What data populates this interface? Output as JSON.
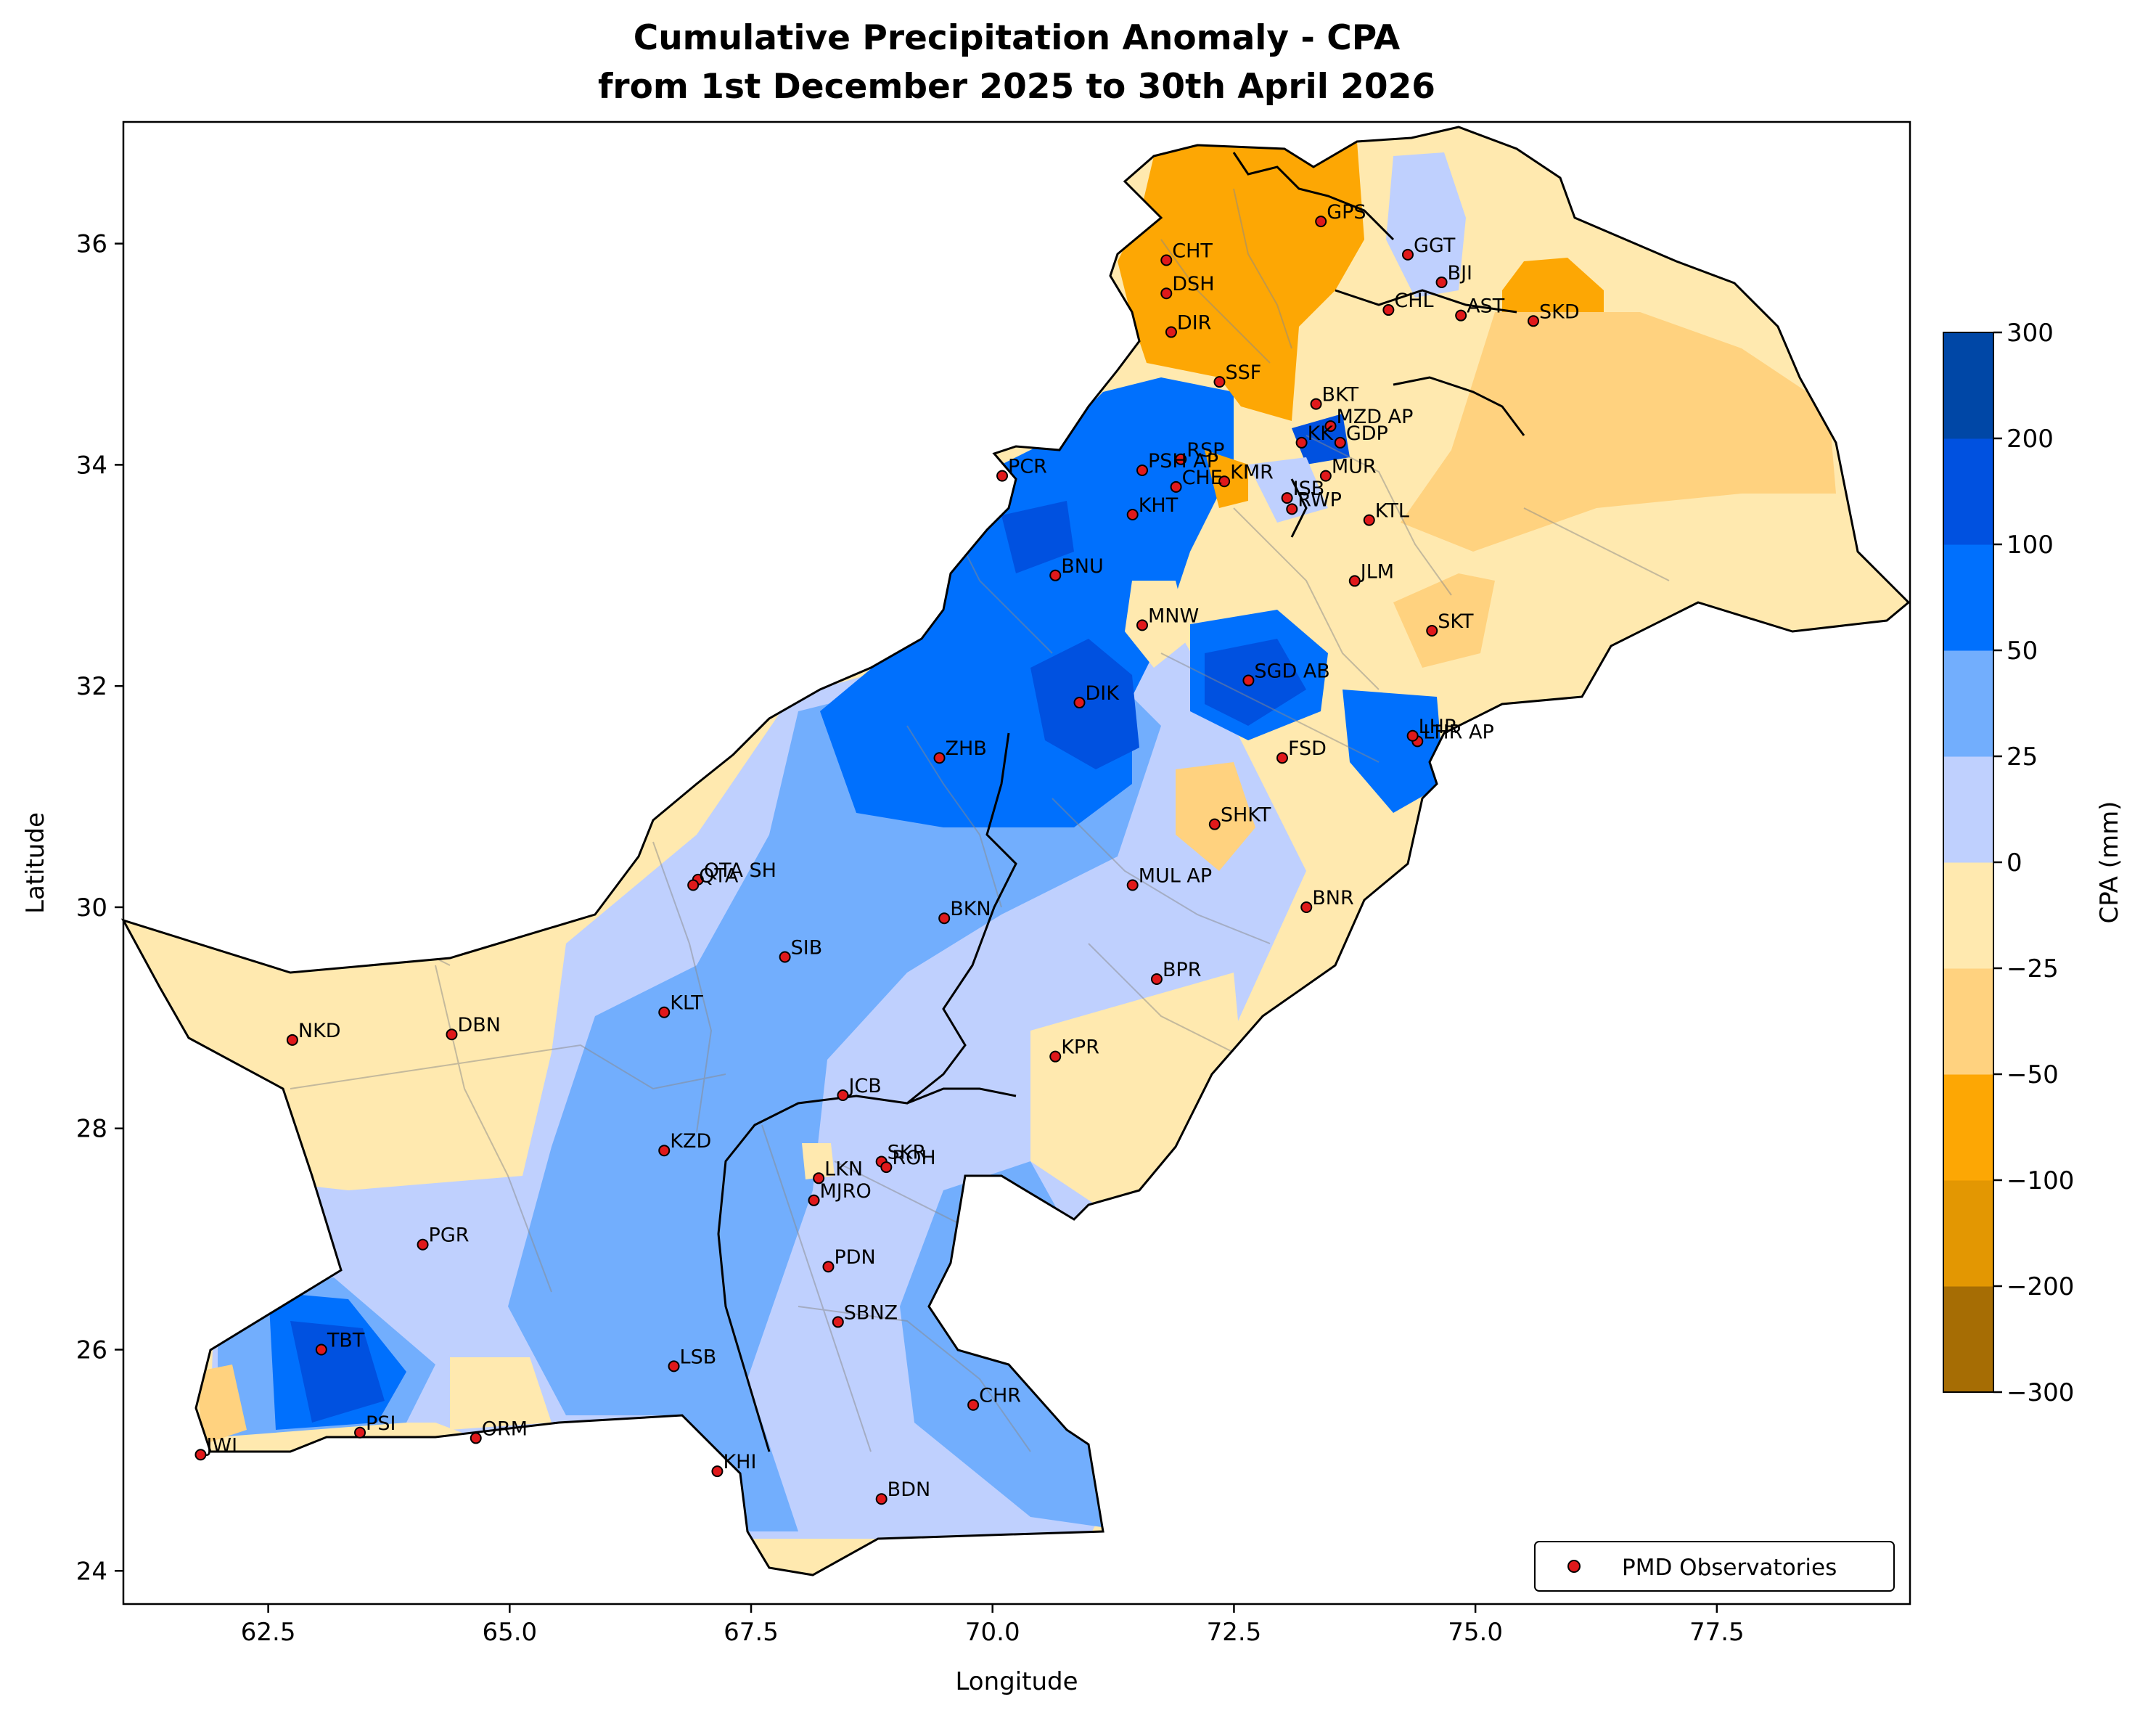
{
  "title_line1": "Cumulative Precipitation Anomaly - CPA",
  "title_line2": "from 1st December 2025 to 30th April 2026",
  "xlabel": "Longitude",
  "ylabel": "Latitude",
  "legend_label": "PMD Observatories",
  "colorbar_label": "CPA (mm)",
  "colors": {
    "marker_fill": "#e0191b",
    "border": "#000000",
    "district_lines": "#8a8a8a"
  },
  "chart_data": {
    "type": "map",
    "xlim": [
      61.0,
      79.5
    ],
    "ylim": [
      23.7,
      37.1
    ],
    "xticks": [
      62.5,
      65.0,
      67.5,
      70.0,
      72.5,
      75.0,
      77.5
    ],
    "xtick_labels": [
      "62.5",
      "65.0",
      "67.5",
      "70.0",
      "72.5",
      "75.0",
      "77.5"
    ],
    "yticks": [
      24,
      26,
      28,
      30,
      32,
      34,
      36
    ],
    "ytick_labels": [
      "24",
      "26",
      "28",
      "30",
      "32",
      "34",
      "36"
    ],
    "colorbar": {
      "levels": [
        -300,
        -200,
        -100,
        -50,
        -25,
        0,
        25,
        50,
        100,
        200,
        300
      ],
      "tick_labels": [
        "−300",
        "−200",
        "−100",
        "−50",
        "−25",
        "0",
        "25",
        "50",
        "100",
        "200",
        "300"
      ],
      "colors": [
        "#a66d04",
        "#e39702",
        "#fda704",
        "#ffd27f",
        "#ffe9af",
        "#bfd0fe",
        "#72aefd",
        "#0070fd",
        "#0051e0",
        "#0047a6"
      ]
    },
    "stations": [
      {
        "code": "GPS",
        "lon": 73.4,
        "lat": 36.2
      },
      {
        "code": "GGT",
        "lon": 74.3,
        "lat": 35.9
      },
      {
        "code": "CHT",
        "lon": 71.8,
        "lat": 35.85
      },
      {
        "code": "BJI",
        "lon": 74.65,
        "lat": 35.65
      },
      {
        "code": "DSH",
        "lon": 71.8,
        "lat": 35.55
      },
      {
        "code": "CHL",
        "lon": 74.1,
        "lat": 35.4
      },
      {
        "code": "AST",
        "lon": 74.85,
        "lat": 35.35
      },
      {
        "code": "SKD",
        "lon": 75.6,
        "lat": 35.3
      },
      {
        "code": "DIR",
        "lon": 71.85,
        "lat": 35.2
      },
      {
        "code": "SSF",
        "lon": 72.35,
        "lat": 34.75
      },
      {
        "code": "BKT",
        "lon": 73.35,
        "lat": 34.55
      },
      {
        "code": "MZD AP",
        "lon": 73.5,
        "lat": 34.35
      },
      {
        "code": "KK",
        "lon": 73.2,
        "lat": 34.2
      },
      {
        "code": "GDP",
        "lon": 73.6,
        "lat": 34.2
      },
      {
        "code": "RSP",
        "lon": 71.95,
        "lat": 34.05
      },
      {
        "code": "PSH AP",
        "lon": 71.55,
        "lat": 33.95
      },
      {
        "code": "MUR",
        "lon": 73.45,
        "lat": 33.9
      },
      {
        "code": "PCR",
        "lon": 70.1,
        "lat": 33.9
      },
      {
        "code": "KMR",
        "lon": 72.4,
        "lat": 33.85
      },
      {
        "code": "CHE",
        "lon": 71.9,
        "lat": 33.8
      },
      {
        "code": "ISB",
        "lon": 73.05,
        "lat": 33.7
      },
      {
        "code": "RWP",
        "lon": 73.1,
        "lat": 33.6
      },
      {
        "code": "KHT",
        "lon": 71.45,
        "lat": 33.55
      },
      {
        "code": "KTL",
        "lon": 73.9,
        "lat": 33.5
      },
      {
        "code": "BNU",
        "lon": 70.65,
        "lat": 33.0
      },
      {
        "code": "JLM",
        "lon": 73.75,
        "lat": 32.95
      },
      {
        "code": "MNW",
        "lon": 71.55,
        "lat": 32.55
      },
      {
        "code": "SKT",
        "lon": 74.55,
        "lat": 32.5
      },
      {
        "code": "SGD AB",
        "lon": 72.65,
        "lat": 32.05
      },
      {
        "code": "DIK",
        "lon": 70.9,
        "lat": 31.85
      },
      {
        "code": "LHR AP",
        "lon": 74.4,
        "lat": 31.5
      },
      {
        "code": "LHR",
        "lon": 74.35,
        "lat": 31.55
      },
      {
        "code": "FSD",
        "lon": 73.0,
        "lat": 31.35
      },
      {
        "code": "ZHB",
        "lon": 69.45,
        "lat": 31.35
      },
      {
        "code": "SHKT",
        "lon": 72.3,
        "lat": 30.75
      },
      {
        "code": "QTA SH",
        "lon": 66.95,
        "lat": 30.25
      },
      {
        "code": "QTA",
        "lon": 66.9,
        "lat": 30.2
      },
      {
        "code": "MUL AP",
        "lon": 71.45,
        "lat": 30.2
      },
      {
        "code": "BNR",
        "lon": 73.25,
        "lat": 30.0
      },
      {
        "code": "BKN",
        "lon": 69.5,
        "lat": 29.9
      },
      {
        "code": "SIB",
        "lon": 67.85,
        "lat": 29.55
      },
      {
        "code": "BPR",
        "lon": 71.7,
        "lat": 29.35
      },
      {
        "code": "KLT",
        "lon": 66.6,
        "lat": 29.05
      },
      {
        "code": "NKD",
        "lon": 62.75,
        "lat": 28.8
      },
      {
        "code": "DBN",
        "lon": 64.4,
        "lat": 28.85
      },
      {
        "code": "KPR",
        "lon": 70.65,
        "lat": 28.65
      },
      {
        "code": "JCB",
        "lon": 68.45,
        "lat": 28.3
      },
      {
        "code": "KZD",
        "lon": 66.6,
        "lat": 27.8
      },
      {
        "code": "SKR",
        "lon": 68.85,
        "lat": 27.7
      },
      {
        "code": "ROH",
        "lon": 68.9,
        "lat": 27.65
      },
      {
        "code": "LKN",
        "lon": 68.2,
        "lat": 27.55
      },
      {
        "code": "MJRO",
        "lon": 68.15,
        "lat": 27.35
      },
      {
        "code": "PGR",
        "lon": 64.1,
        "lat": 26.95
      },
      {
        "code": "PDN",
        "lon": 68.3,
        "lat": 26.75
      },
      {
        "code": "SBNZ",
        "lon": 68.4,
        "lat": 26.25
      },
      {
        "code": "TBT",
        "lon": 63.05,
        "lat": 26.0
      },
      {
        "code": "LSB",
        "lon": 66.7,
        "lat": 25.85
      },
      {
        "code": "CHR",
        "lon": 69.8,
        "lat": 25.5
      },
      {
        "code": "PSI",
        "lon": 63.45,
        "lat": 25.25
      },
      {
        "code": "ORM",
        "lon": 64.65,
        "lat": 25.2
      },
      {
        "code": "JWI",
        "lon": 61.8,
        "lat": 25.05
      },
      {
        "code": "KHI",
        "lon": 67.15,
        "lat": 24.9
      },
      {
        "code": "BDN",
        "lon": 68.85,
        "lat": 24.65
      }
    ]
  }
}
